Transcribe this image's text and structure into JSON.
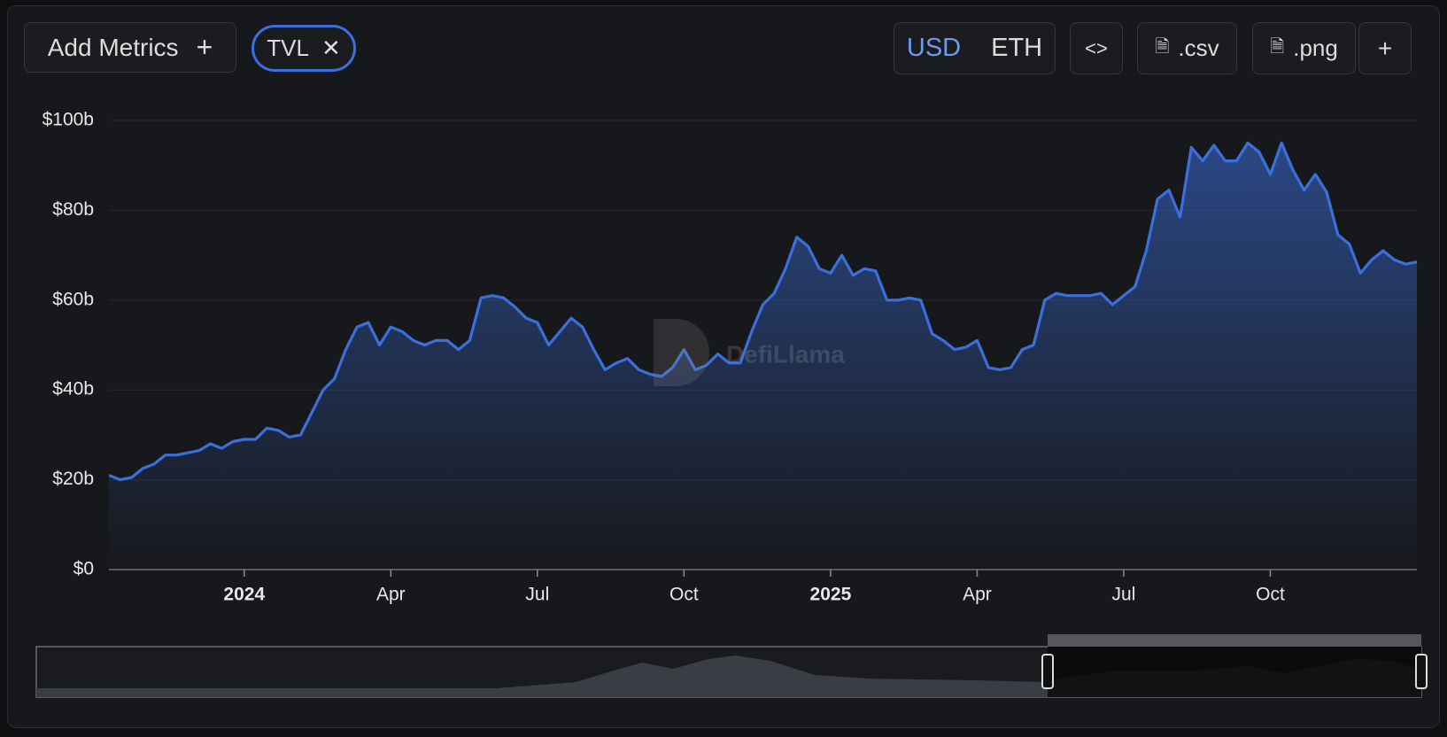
{
  "toolbar": {
    "add_metrics": "Add Metrics",
    "metric_tag": "TVL",
    "currency": [
      "USD",
      "ETH"
    ],
    "csv": ".csv",
    "png": ".png"
  },
  "watermark": "DefiLlama",
  "chart_data": {
    "type": "line",
    "categories": [
      null,
      null,
      null,
      null,
      null,
      null,
      null,
      null,
      null,
      null,
      null,
      null,
      "2024",
      null,
      null,
      null,
      null,
      null,
      null,
      null,
      null,
      null,
      null,
      null,
      null,
      "Apr",
      null,
      null,
      null,
      null,
      null,
      null,
      null,
      null,
      null,
      null,
      null,
      null,
      "Jul",
      null,
      null,
      null,
      null,
      null,
      null,
      null,
      null,
      null,
      null,
      null,
      null,
      "Oct",
      null,
      null,
      null,
      null,
      null,
      null,
      null,
      null,
      null,
      null,
      null,
      null,
      "2025",
      null,
      null,
      null,
      null,
      null,
      null,
      null,
      null,
      null,
      null,
      null,
      null,
      "Apr",
      null,
      null,
      null,
      null,
      null,
      null,
      null,
      null,
      null,
      null,
      null,
      null,
      "Jul",
      null,
      null,
      null,
      null,
      null,
      null,
      null,
      null,
      null,
      null,
      null,
      null,
      "Oct",
      null,
      null,
      null,
      null,
      null,
      null,
      null,
      null,
      null,
      null,
      null,
      null,
      null
    ],
    "series": [
      {
        "name": "TVL",
        "color": "#3a6fdc",
        "values": [
          21,
          20,
          20.5,
          22.5,
          23.5,
          25.5,
          25.5,
          26,
          26.5,
          28,
          27,
          28.5,
          29,
          29,
          31.5,
          31,
          29.5,
          30,
          35,
          40,
          42.5,
          49,
          54,
          55,
          50,
          54,
          53,
          51,
          50,
          51,
          51,
          49,
          51,
          60.5,
          61,
          60.5,
          58.5,
          56,
          55,
          50,
          53,
          56,
          54,
          49,
          44.5,
          46,
          47,
          44.5,
          43.5,
          43,
          45,
          49,
          44.5,
          45.5,
          48,
          46,
          46,
          53,
          59,
          61.5,
          67,
          74,
          72,
          67,
          66,
          70,
          65.5,
          67,
          66.5,
          60,
          60,
          60.5,
          60,
          52.5,
          51,
          49,
          49.5,
          51,
          45,
          44.5,
          45,
          49,
          50,
          60,
          61.5,
          61,
          61,
          61,
          61.5,
          59,
          61,
          63,
          71,
          82.5,
          84.5,
          78.5,
          94,
          91,
          94.5,
          91,
          91,
          95,
          93,
          88,
          95,
          89,
          84.5,
          88,
          84,
          74.5,
          72.5,
          66,
          69,
          71,
          69,
          68,
          68.5
        ]
      }
    ],
    "ylim": [
      0,
      100
    ],
    "yticks": [
      {
        "value": 0,
        "label": "$0"
      },
      {
        "value": 20,
        "label": "$20b"
      },
      {
        "value": 40,
        "label": "$40b"
      },
      {
        "value": 60,
        "label": "$60b"
      },
      {
        "value": 80,
        "label": "$80b"
      },
      {
        "value": 100,
        "label": "$100b"
      }
    ],
    "grid": true
  }
}
